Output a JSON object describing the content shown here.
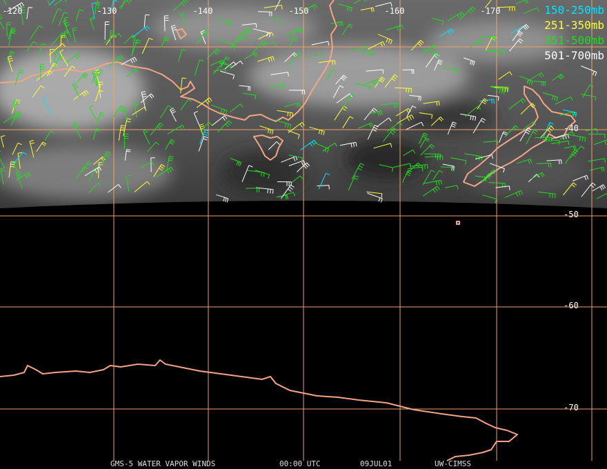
{
  "longitude_labels": [
    "-120",
    "-130",
    "-140",
    "-150",
    "-160",
    "-170"
  ],
  "latitude_labels": [
    "-40",
    "-50",
    "-60",
    "-70"
  ],
  "legend": [
    {
      "name": "150-250mb",
      "color": "#00e5ff"
    },
    {
      "name": "251-350mb",
      "color": "#ffff33"
    },
    {
      "name": "351-500mb",
      "color": "#22dd22"
    },
    {
      "name": "501-700mb",
      "color": "#ffffff"
    }
  ],
  "footer": [
    "GMS-5 WATER VAPOR WINDS",
    "00:00 UTC",
    "09JUL01",
    "UW-CIMSS"
  ]
}
